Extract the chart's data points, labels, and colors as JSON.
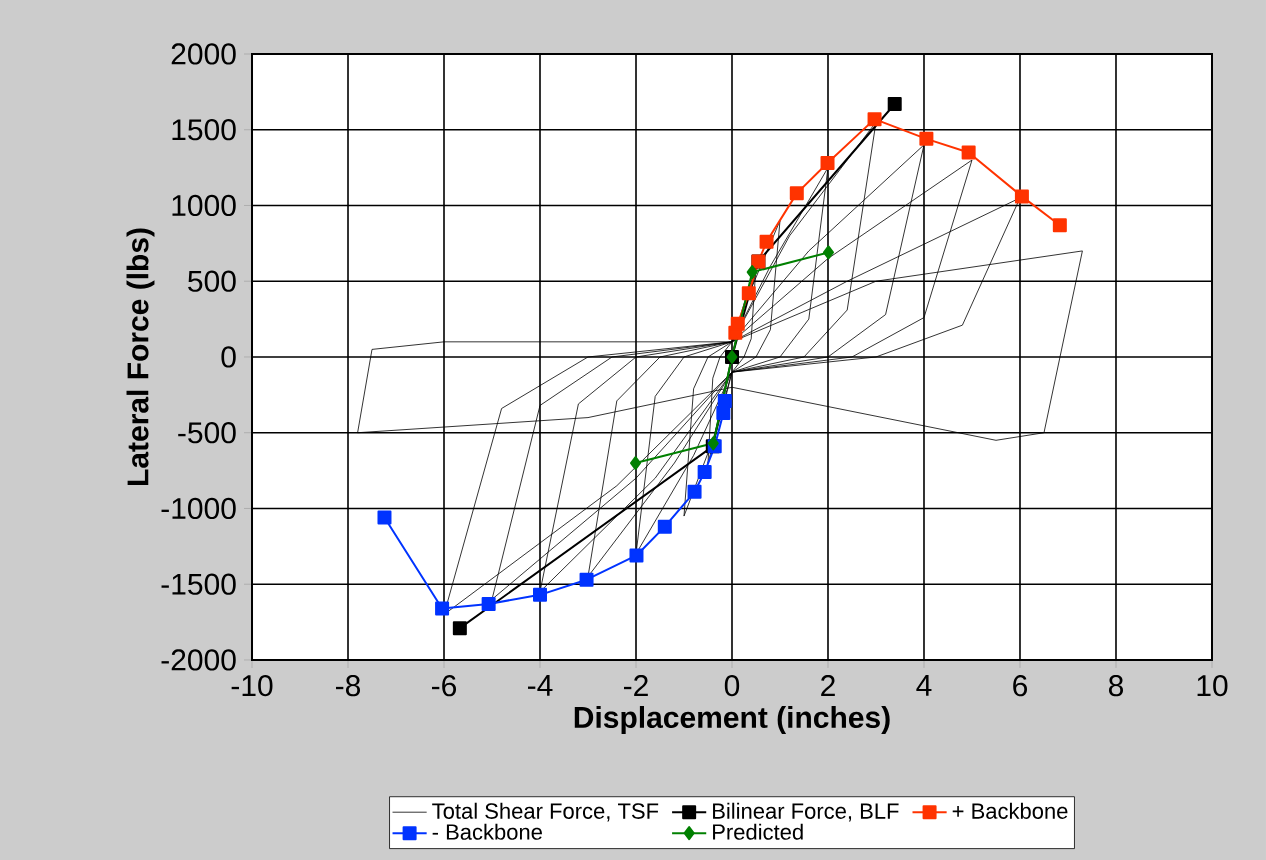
{
  "chart_data": {
    "type": "line",
    "xlabel": "Displacement (inches)",
    "ylabel": "Lateral Force (lbs)",
    "xlim": [
      -10,
      10
    ],
    "ylim": [
      -2000,
      2000
    ],
    "xticks": [
      -10,
      -8,
      -6,
      -4,
      -2,
      0,
      2,
      4,
      6,
      8,
      10
    ],
    "yticks": [
      -2000,
      -1500,
      -1000,
      -500,
      0,
      500,
      1000,
      1500,
      2000
    ],
    "grid": true,
    "legend": "bottom",
    "series": [
      {
        "name": "Total Shear Force, TSF",
        "color": "#000000",
        "marker": "none",
        "x": [
          0,
          0.2,
          0.5,
          0.4,
          0.25,
          0,
          -0.2,
          -0.5,
          -0.4,
          -0.25,
          0,
          0.4,
          1,
          0.8,
          0.5,
          0,
          -0.4,
          -1,
          -0.8,
          -0.5,
          0,
          0.8,
          2,
          1.6,
          1,
          0,
          -0.8,
          -2,
          -1.6,
          -1,
          0,
          1.2,
          3,
          2.4,
          1.5,
          0,
          -1.2,
          -3,
          -2.4,
          -1.5,
          0,
          1.6,
          4,
          3.2,
          2,
          0,
          -1.6,
          -4,
          -3.2,
          -2,
          0,
          2,
          5,
          4,
          2.5,
          0,
          -2,
          -5,
          -4,
          -2.5,
          0,
          2.4,
          6,
          4.8,
          3,
          0,
          -2.4,
          -6,
          -4.8,
          -3,
          0,
          3,
          7.3,
          6.5,
          5.5,
          0,
          -3,
          -7.8,
          -7.5,
          -6,
          0
        ],
        "values": [
          0,
          300,
          600,
          120,
          0,
          -100,
          -350,
          -700,
          -140,
          0,
          100,
          450,
          900,
          180,
          0,
          -100,
          -550,
          -1050,
          -210,
          0,
          100,
          600,
          1250,
          250,
          0,
          -100,
          -650,
          -1300,
          -260,
          0,
          100,
          800,
          1550,
          310,
          0,
          -100,
          -700,
          -1450,
          -290,
          0,
          100,
          700,
          1400,
          280,
          0,
          -100,
          -800,
          -1550,
          -310,
          0,
          100,
          650,
          1300,
          260,
          0,
          -100,
          -800,
          -1600,
          -320,
          0,
          100,
          500,
          1050,
          210,
          0,
          -100,
          -850,
          -1700,
          -340,
          0,
          100,
          500,
          700,
          -500,
          -550,
          -200,
          -400,
          -500,
          50,
          100,
          100
        ]
      },
      {
        "name": "Bilinear Force, BLF",
        "color": "#000000",
        "marker": "square",
        "x": [
          -5.67,
          -0.4,
          0,
          0.55,
          3.39
        ],
        "values": [
          -1790,
          -590,
          0,
          630,
          1670
        ]
      },
      {
        "name": "+ Backbone",
        "color": "#ff3300",
        "marker": "square",
        "x": [
          0.07,
          0.12,
          0.35,
          0.55,
          0.72,
          1.35,
          1.99,
          2.97,
          4.05,
          4.93,
          6.04,
          6.83
        ],
        "values": [
          160,
          220,
          420,
          630,
          760,
          1080,
          1280,
          1570,
          1440,
          1350,
          1060,
          870
        ]
      },
      {
        "name": "- Backbone",
        "color": "#0033ff",
        "marker": "square",
        "x": [
          -7.24,
          -6.04,
          -5.07,
          -4.0,
          -3.03,
          -1.99,
          -1.4,
          -0.78,
          -0.57,
          -0.36,
          -0.18,
          -0.15
        ],
        "values": [
          -1060,
          -1660,
          -1630,
          -1570,
          -1470,
          -1310,
          -1120,
          -890,
          -760,
          -590,
          -370,
          -290
        ]
      },
      {
        "name": "Predicted",
        "color": "#008000",
        "marker": "diamond",
        "x": [
          -2.01,
          -0.39,
          0,
          0.42,
          2.01
        ],
        "values": [
          -700,
          -570,
          0,
          560,
          690
        ]
      }
    ]
  }
}
